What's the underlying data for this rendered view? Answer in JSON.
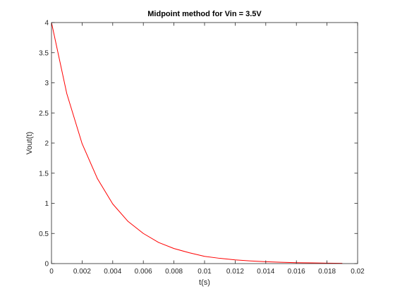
{
  "chart_data": {
    "type": "line",
    "title": "Midpoint method for Vin = 3.5V",
    "xlabel": "t(s)",
    "ylabel": "Vout(t)",
    "xlim": [
      0,
      0.02
    ],
    "ylim": [
      0,
      4
    ],
    "x_ticks": [
      "0",
      "0.002",
      "0.004",
      "0.006",
      "0.008",
      "0.01",
      "0.012",
      "0.014",
      "0.016",
      "0.018",
      "0.02"
    ],
    "y_ticks": [
      "0",
      "0.5",
      "1",
      "1.5",
      "2",
      "2.5",
      "3",
      "3.5",
      "4"
    ],
    "grid": false,
    "series": [
      {
        "color": "#ff0000",
        "x": [
          0,
          0.001,
          0.002,
          0.003,
          0.004,
          0.005,
          0.006,
          0.007,
          0.008,
          0.009,
          0.01,
          0.011,
          0.012,
          0.013,
          0.014,
          0.015,
          0.016,
          0.017,
          0.018,
          0.019
        ],
        "y": [
          4.0,
          2.82,
          1.99,
          1.41,
          0.99,
          0.7,
          0.5,
          0.35,
          0.25,
          0.18,
          0.12,
          0.087,
          0.062,
          0.044,
          0.031,
          0.022,
          0.015,
          0.011,
          0.008,
          0.005
        ]
      }
    ]
  }
}
